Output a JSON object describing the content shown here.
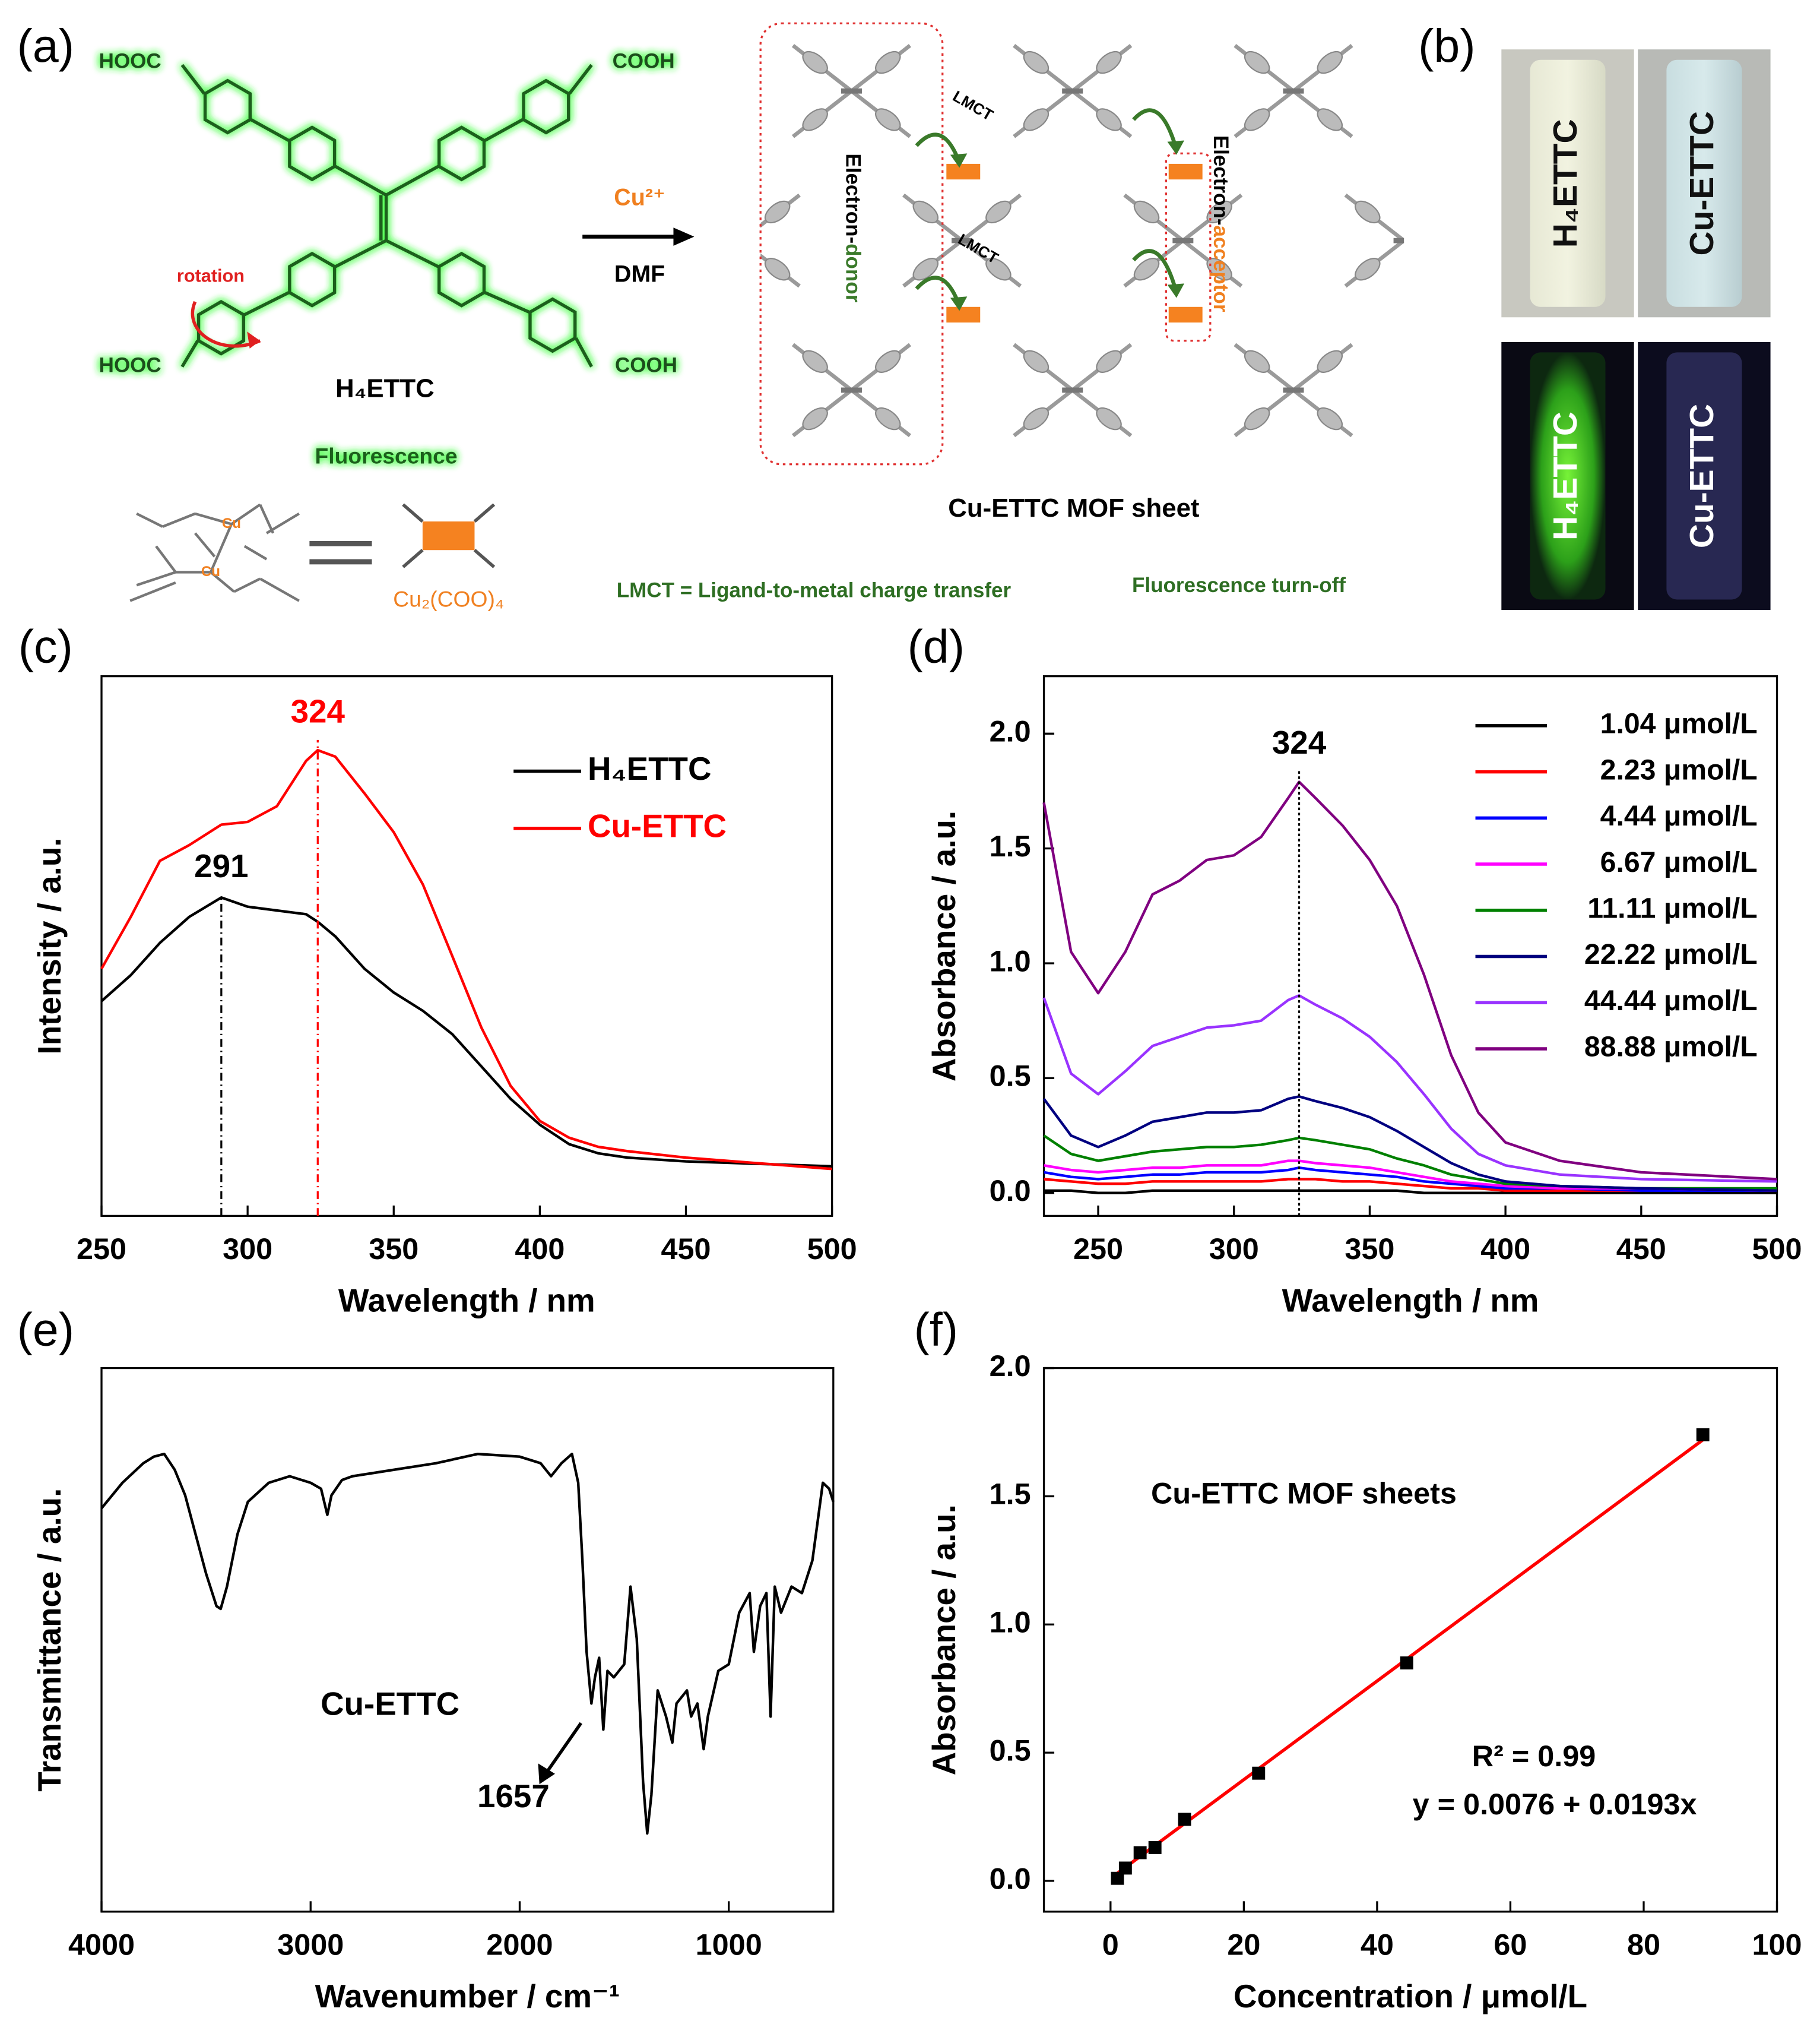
{
  "panel_labels": [
    "(a)",
    "(b)",
    "(c)",
    "(d)",
    "(e)",
    "(f)"
  ],
  "scheme": {
    "acid_groups": [
      "HOOC",
      "COOH",
      "HOOC",
      "COOH"
    ],
    "rotation": "rotation",
    "ligand": "H₄ETTC",
    "fluorescence": "Fluorescence",
    "reagent": "Cu²⁺",
    "solvent": "DMF",
    "metal_labels": [
      "Cu",
      "Cu"
    ],
    "cluster": "Cu₂(COO)₄",
    "lmct": [
      "LMCT",
      "LMCT"
    ],
    "donor": [
      "Electron-",
      "donor"
    ],
    "acceptor": [
      "Electron-",
      "acceptor"
    ],
    "sheet": "Cu-ETTC MOF sheet",
    "lmct_note": "LMCT = Ligand-to-metal charge transfer",
    "turn_off": "Fluorescence turn-off"
  },
  "photos": {
    "daylight": [
      "H₄ETTC",
      "Cu-ETTC"
    ],
    "uv": [
      "H₄ETTC",
      "Cu-ETTC"
    ]
  },
  "chart_data": [
    {
      "type": "line",
      "x_label": "Wavelength / nm",
      "y_label": "Intensity / a.u.",
      "x": [
        250,
        260,
        270,
        280,
        291,
        300,
        310,
        320,
        324,
        330,
        340,
        350,
        360,
        370,
        380,
        390,
        400,
        410,
        420,
        430,
        450,
        500
      ],
      "xlim": [
        250,
        500
      ],
      "xticks": [
        250,
        300,
        350,
        400,
        450,
        500
      ],
      "ylim": [
        0,
        100
      ],
      "series": [
        {
          "name": "H₄ETTC",
          "color": "#000000",
          "values": [
            39.8,
            44.6,
            50.6,
            55.4,
            59,
            57.3,
            56.6,
            55.9,
            54.5,
            51.8,
            45.8,
            41.4,
            38,
            33.7,
            27.7,
            21.7,
            16.9,
            13.3,
            11.6,
            10.8,
            10.1,
            9.2
          ]
        },
        {
          "name": "Cu-ETTC",
          "color": "#ff0000",
          "values": [
            45.8,
            55.4,
            65.8,
            68.7,
            72.5,
            73,
            75.9,
            84.3,
            86.3,
            85.1,
            78.3,
            71.1,
            61.4,
            48.2,
            34.9,
            24.1,
            17.6,
            14.5,
            12.8,
            12,
            10.8,
            8.7
          ]
        }
      ],
      "peaks": [
        {
          "x": 291,
          "color": "#000000"
        },
        {
          "x": 324,
          "color": "#ff0000"
        }
      ]
    },
    {
      "type": "line",
      "x_label": "Wavelength / nm",
      "y_label": "Absorbance / a.u.",
      "x": [
        230,
        240,
        250,
        260,
        270,
        280,
        290,
        300,
        310,
        320,
        324,
        330,
        340,
        350,
        360,
        370,
        380,
        390,
        400,
        420,
        450,
        500
      ],
      "xlim": [
        230,
        500
      ],
      "xticks": [
        250,
        300,
        350,
        400,
        450,
        500
      ],
      "ylim": [
        -0.1,
        2.25
      ],
      "yticks": [
        {
          "value": 0,
          "label": "0.0"
        },
        0.5,
        {
          "value": 1,
          "label": "1.0"
        },
        1.5,
        {
          "value": 2,
          "label": "2.0"
        }
      ],
      "series": [
        {
          "name": "1.04 μmol/L",
          "color": "#000000",
          "values": [
            0.01,
            0.01,
            0,
            0,
            0.01,
            0.01,
            0.01,
            0.01,
            0.01,
            0.01,
            0.01,
            0.01,
            0.01,
            0.01,
            0.01,
            0,
            0,
            0,
            0,
            0,
            0,
            0
          ]
        },
        {
          "name": "2.23 μmol/L",
          "color": "#ff0000",
          "values": [
            0.06,
            0.05,
            0.04,
            0.04,
            0.05,
            0.05,
            0.05,
            0.05,
            0.05,
            0.06,
            0.06,
            0.06,
            0.05,
            0.05,
            0.04,
            0.03,
            0.02,
            0.02,
            0.01,
            0.01,
            0.01,
            0.01
          ]
        },
        {
          "name": "4.44 μmol/L",
          "color": "#0000ff",
          "values": [
            0.09,
            0.07,
            0.06,
            0.07,
            0.08,
            0.08,
            0.09,
            0.09,
            0.09,
            0.1,
            0.11,
            0.1,
            0.09,
            0.08,
            0.07,
            0.05,
            0.04,
            0.03,
            0.02,
            0.02,
            0.01,
            0.01
          ]
        },
        {
          "name": "6.67 μmol/L",
          "color": "#ff00ff",
          "values": [
            0.12,
            0.1,
            0.09,
            0.1,
            0.11,
            0.11,
            0.12,
            0.12,
            0.12,
            0.14,
            0.14,
            0.13,
            0.12,
            0.11,
            0.09,
            0.07,
            0.05,
            0.04,
            0.03,
            0.02,
            0.02,
            0.01
          ]
        },
        {
          "name": "11.11 μmol/L",
          "color": "#008000",
          "values": [
            0.25,
            0.17,
            0.14,
            0.16,
            0.18,
            0.19,
            0.2,
            0.2,
            0.21,
            0.23,
            0.24,
            0.23,
            0.21,
            0.19,
            0.15,
            0.12,
            0.08,
            0.06,
            0.04,
            0.03,
            0.02,
            0.02
          ]
        },
        {
          "name": "22.22 μmol/L",
          "color": "#000080",
          "values": [
            0.41,
            0.25,
            0.2,
            0.25,
            0.31,
            0.33,
            0.35,
            0.35,
            0.36,
            0.41,
            0.42,
            0.4,
            0.37,
            0.33,
            0.27,
            0.2,
            0.13,
            0.08,
            0.05,
            0.03,
            0.02,
            0.01
          ]
        },
        {
          "name": "44.44 μmol/L",
          "color": "#9933ff",
          "values": [
            0.85,
            0.52,
            0.43,
            0.53,
            0.64,
            0.68,
            0.72,
            0.73,
            0.75,
            0.84,
            0.86,
            0.82,
            0.76,
            0.68,
            0.57,
            0.43,
            0.28,
            0.17,
            0.12,
            0.08,
            0.06,
            0.05
          ]
        },
        {
          "name": "88.88 μmol/L",
          "color": "#800080",
          "values": [
            1.7,
            1.05,
            0.87,
            1.05,
            1.3,
            1.36,
            1.45,
            1.47,
            1.55,
            1.72,
            1.79,
            1.72,
            1.6,
            1.45,
            1.25,
            0.95,
            0.6,
            0.35,
            0.22,
            0.14,
            0.09,
            0.06
          ]
        }
      ],
      "peaks": [
        {
          "x": 324,
          "color": "#000000"
        }
      ]
    },
    {
      "type": "line",
      "x_label": "Wavenumber / cm⁻¹",
      "y_label": "Transmittance / a.u.",
      "x": [
        4000,
        3900,
        3800,
        3750,
        3700,
        3650,
        3600,
        3550,
        3500,
        3450,
        3430,
        3400,
        3350,
        3300,
        3200,
        3100,
        3000,
        2950,
        2920,
        2900,
        2850,
        2800,
        2600,
        2400,
        2200,
        2000,
        1900,
        1850,
        1800,
        1750,
        1720,
        1700,
        1680,
        1657,
        1640,
        1620,
        1600,
        1580,
        1550,
        1500,
        1470,
        1440,
        1410,
        1390,
        1370,
        1340,
        1300,
        1270,
        1250,
        1200,
        1180,
        1150,
        1120,
        1100,
        1050,
        1000,
        950,
        900,
        880,
        850,
        820,
        800,
        780,
        750,
        700,
        650,
        600,
        550,
        520,
        500
      ],
      "xlim": [
        4000,
        500
      ],
      "xticks": [
        4000,
        3000,
        2000,
        1000
      ],
      "ylim": [
        0,
        100
      ],
      "series": [
        {
          "name": "Cu-ETTC",
          "color": "#000000",
          "values": [
            74.2,
            78.9,
            82.5,
            83.7,
            84.2,
            81.3,
            76.6,
            69.4,
            62.2,
            56.2,
            55.7,
            59.8,
            69.4,
            75.4,
            78.9,
            80.1,
            78.9,
            77.8,
            73,
            76.6,
            79.4,
            80.1,
            81.3,
            82.5,
            84.2,
            83.7,
            82.5,
            80.1,
            82.5,
            84.2,
            78.9,
            64.6,
            47.8,
            38.3,
            43.1,
            46.7,
            33.5,
            44.3,
            43.1,
            45.5,
            59.8,
            50.2,
            23.9,
            14.4,
            21.5,
            40.7,
            35.9,
            31.1,
            38.3,
            40.7,
            35.9,
            38.3,
            29.9,
            35.9,
            44.3,
            45.5,
            55,
            58.6,
            47.8,
            56.2,
            58.6,
            35.9,
            59.8,
            55,
            59.8,
            58.6,
            64.6,
            78.9,
            77.8,
            75.4
          ]
        }
      ],
      "marked_peak": 1657
    },
    {
      "type": "scatter",
      "x_label": "Concentration / μmol/L",
      "y_label": "Absorbance / a.u.",
      "x": [
        1.04,
        2.23,
        4.44,
        6.67,
        11.11,
        22.22,
        44.44,
        88.88
      ],
      "values": [
        0.01,
        0.05,
        0.11,
        0.13,
        0.24,
        0.42,
        0.85,
        1.74
      ],
      "color": "#000000",
      "fit": {
        "x": [
          1.04,
          88.88
        ],
        "y": [
          0.03,
          1.72
        ],
        "color": "#ff0000"
      },
      "xlim": [
        -10,
        100
      ],
      "xticks": [
        0,
        20,
        40,
        60,
        80,
        100
      ],
      "ylim": [
        -0.12,
        2
      ],
      "yticks": [
        {
          "value": 0,
          "label": "0.0"
        },
        0.5,
        {
          "value": 1,
          "label": "1.0"
        },
        1.5,
        {
          "value": 2,
          "label": "2.0"
        }
      ],
      "annotations": [
        "Cu-ETTC MOF sheets",
        "R² = 0.99",
        "y = 0.0076 + 0.0193x"
      ]
    }
  ]
}
